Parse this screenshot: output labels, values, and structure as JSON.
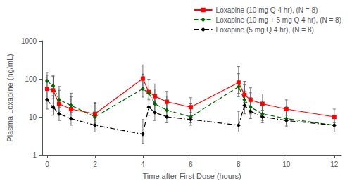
{
  "chart_data": {
    "type": "line",
    "xlabel": "Time after First Dose (hours)",
    "ylabel": "Plasma Loxapine (ng/mL)",
    "log": "y",
    "xlim": [
      -0.2,
      12.3
    ],
    "ylim": [
      1,
      1000
    ],
    "xticks": [
      0,
      2,
      4,
      6,
      8,
      10,
      12
    ],
    "yticks": [
      1,
      10,
      100,
      1000
    ],
    "grid": false,
    "legend": "upper right",
    "x": [
      0,
      0.25,
      0.5,
      1,
      2,
      4,
      4.25,
      4.5,
      5,
      6,
      8,
      8.25,
      8.5,
      9,
      10,
      12
    ],
    "series": [
      {
        "name": "Loxapine (10 mg Q 4 hr), (N = 8)",
        "color": "#ff0000",
        "line_style": "solid",
        "marker": "square",
        "values": [
          55,
          50,
          22,
          16,
          12,
          102,
          45,
          35,
          25,
          18,
          80,
          38,
          28,
          22,
          16,
          10
        ],
        "yerr_low": [
          25,
          20,
          8,
          5,
          4,
          45,
          15,
          10,
          8,
          5,
          38,
          14,
          9,
          7,
          5,
          3
        ],
        "yerr_high": [
          70,
          65,
          28,
          18,
          12,
          130,
          50,
          38,
          22,
          14,
          130,
          48,
          30,
          18,
          12,
          6
        ]
      },
      {
        "name": "Loxapine (10 mg + 5 mg Q 4 hr), (N = 8)",
        "color": "#006600",
        "line_style": "dashed",
        "marker": "diamond",
        "values": [
          88,
          65,
          28,
          20,
          10,
          55,
          42,
          22,
          15,
          10,
          62,
          28,
          18,
          12,
          9,
          6
        ],
        "yerr_low": [
          38,
          25,
          10,
          7,
          3,
          22,
          14,
          8,
          5,
          3,
          28,
          10,
          6,
          4,
          3,
          2
        ],
        "yerr_high": [
          60,
          55,
          35,
          22,
          12,
          78,
          55,
          32,
          20,
          12,
          75,
          42,
          25,
          14,
          10,
          5
        ]
      },
      {
        "name": "Loxapine (5 mg Q 4 hr), (N = 8)",
        "color": "#000000",
        "line_style": "dashdot",
        "marker": "diamond",
        "values": [
          28,
          18,
          12,
          9,
          6,
          3.5,
          18,
          13,
          10,
          8.5,
          6,
          20,
          14,
          10,
          8,
          6
        ],
        "yerr_low": [
          12,
          7,
          4,
          3,
          2,
          1.5,
          7,
          5,
          3,
          2.5,
          2,
          8,
          5,
          3,
          2.5,
          2
        ],
        "yerr_high": [
          22,
          18,
          12,
          9,
          6,
          5,
          22,
          17,
          12,
          9,
          8,
          28,
          18,
          12,
          8,
          5
        ]
      }
    ]
  }
}
